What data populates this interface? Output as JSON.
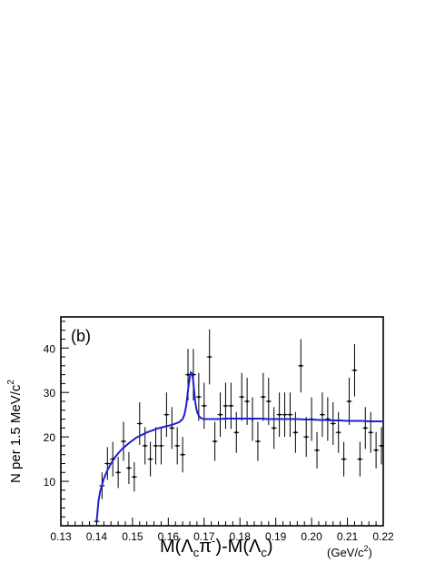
{
  "chart_data": {
    "type": "scatter",
    "panel_label": "(b)",
    "ylabel": "N per 1.5 MeV/c",
    "ylabel_sup": "2",
    "xlabel": "M(Λᴄπ⁻)-M(Λᴄ)",
    "xlabel_parts": {
      "M1": "M(Λ",
      "sub1": "c",
      "pi": "π",
      "sup1": "-",
      "close1": ")-M(Λ",
      "sub2": "c",
      "close2": ")"
    },
    "xunit": "(GeV/c",
    "xunit_sup": "2",
    "xunit_close": ")",
    "xlim": [
      0.13,
      0.22
    ],
    "ylim": [
      0,
      47
    ],
    "x_ticks": [
      "0.13",
      "0.14",
      "0.15",
      "0.16",
      "0.17",
      "0.18",
      "0.19",
      "0.20",
      "0.21",
      "0.22"
    ],
    "y_ticks": [
      "10",
      "20",
      "30",
      "40"
    ],
    "data_color": "#000000",
    "fit_color": "#1f1fd1",
    "series": [
      {
        "kind": "data",
        "x": [
          0.14,
          0.1415,
          0.143,
          0.1445,
          0.146,
          0.1475,
          0.149,
          0.1505,
          0.152,
          0.1535,
          0.155,
          0.1565,
          0.158,
          0.1595,
          0.161,
          0.1625,
          0.164,
          0.1655,
          0.167,
          0.1685,
          0.17,
          0.1715,
          0.173,
          0.1745,
          0.176,
          0.1775,
          0.179,
          0.1805,
          0.182,
          0.1835,
          0.185,
          0.1865,
          0.188,
          0.1895,
          0.191,
          0.1925,
          0.194,
          0.1955,
          0.197,
          0.1985,
          0.2,
          0.2015,
          0.203,
          0.2045,
          0.206,
          0.2075,
          0.209,
          0.2105,
          0.212,
          0.2135,
          0.215,
          0.2165,
          0.218,
          0.2195
        ],
        "y": [
          1,
          9,
          14,
          15,
          12,
          19,
          13,
          11,
          23,
          18,
          15,
          18,
          18,
          25,
          22,
          18,
          16,
          34,
          34,
          29,
          27,
          38,
          19,
          25,
          27,
          27,
          21,
          29,
          28,
          24,
          19,
          29,
          28,
          22,
          25,
          25,
          25,
          21,
          36,
          20,
          24,
          17,
          25,
          24,
          23,
          21,
          15,
          28,
          35,
          15,
          22,
          21,
          17,
          18
        ],
        "err": [
          1,
          3,
          3.7,
          3.9,
          3.5,
          4.4,
          3.6,
          3.3,
          4.8,
          4.2,
          3.9,
          4.2,
          4.2,
          5,
          4.7,
          4.2,
          4,
          5.8,
          5.8,
          5.4,
          5.2,
          6.2,
          4.4,
          5,
          5.2,
          5.2,
          4.6,
          5.4,
          5.3,
          4.9,
          4.4,
          5.4,
          5.3,
          4.7,
          5,
          5,
          5,
          4.6,
          6,
          4.5,
          4.9,
          4.1,
          5,
          4.9,
          4.8,
          4.6,
          3.9,
          5.3,
          5.9,
          3.9,
          4.7,
          4.6,
          4.1,
          4.2
        ]
      },
      {
        "kind": "fit",
        "x": [
          0.14,
          0.1405,
          0.141,
          0.142,
          0.143,
          0.144,
          0.145,
          0.146,
          0.147,
          0.148,
          0.149,
          0.15,
          0.151,
          0.152,
          0.153,
          0.154,
          0.155,
          0.156,
          0.157,
          0.158,
          0.159,
          0.16,
          0.161,
          0.162,
          0.163,
          0.164,
          0.1645,
          0.165,
          0.1655,
          0.166,
          0.1663,
          0.1666,
          0.1669,
          0.1672,
          0.1675,
          0.1678,
          0.1681,
          0.1685,
          0.169,
          0.1695,
          0.17,
          0.171,
          0.172,
          0.174,
          0.176,
          0.178,
          0.18,
          0.182,
          0.184,
          0.186,
          0.188,
          0.19,
          0.192,
          0.194,
          0.196,
          0.198,
          0.2,
          0.202,
          0.204,
          0.206,
          0.208,
          0.21,
          0.212,
          0.214,
          0.216,
          0.218,
          0.22
        ],
        "y": [
          1.0,
          5.5,
          7.8,
          10.6,
          12.5,
          14.0,
          15.3,
          16.3,
          17.2,
          17.9,
          18.6,
          19.2,
          19.8,
          20.2,
          20.6,
          21.0,
          21.3,
          21.6,
          21.9,
          22.1,
          22.3,
          22.5,
          22.7,
          23.0,
          23.3,
          24.0,
          25.0,
          27.0,
          30.5,
          33.5,
          34.5,
          34.3,
          33.0,
          30.5,
          28.0,
          26.5,
          25.5,
          24.8,
          24.3,
          24.1,
          24.0,
          24.0,
          24.0,
          24.0,
          24.1,
          24.1,
          24.1,
          24.1,
          24.1,
          24.1,
          24.0,
          24.0,
          24.0,
          24.0,
          24.0,
          23.9,
          23.9,
          23.8,
          23.8,
          23.7,
          23.7,
          23.6,
          23.6,
          23.6,
          23.5,
          23.5,
          23.5
        ]
      }
    ]
  }
}
